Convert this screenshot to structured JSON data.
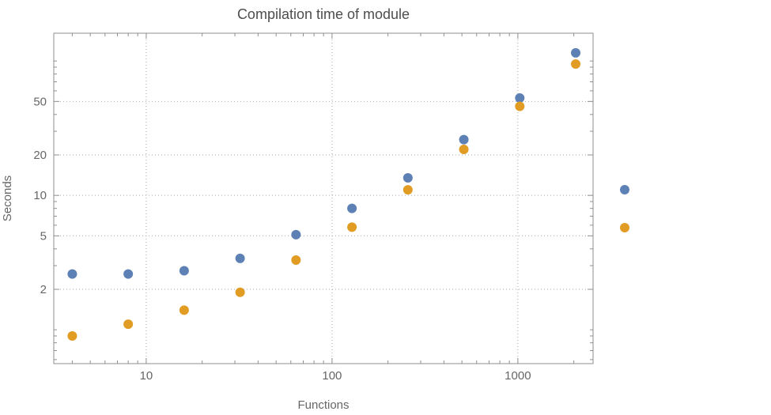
{
  "chart_data": {
    "type": "scatter",
    "title": "Compilation time of module",
    "xlabel": "Functions",
    "ylabel": "Seconds",
    "xscale": "log",
    "yscale": "log",
    "grid": true,
    "grid_style": "dotted",
    "xlim": [
      3.18,
      2540
    ],
    "ylim": [
      0.56,
      161
    ],
    "x_ticks": [
      10,
      100,
      1000
    ],
    "y_ticks": [
      2,
      5,
      10,
      20,
      50
    ],
    "x": [
      4,
      8,
      16,
      32,
      64,
      128,
      256,
      512,
      1024,
      2048
    ],
    "series": [
      {
        "name": "blue-series",
        "color": "#5E81B5",
        "values": [
          2.6,
          2.6,
          2.75,
          3.4,
          5.1,
          8.0,
          13.5,
          26,
          53,
          115
        ]
      },
      {
        "name": "orange-series",
        "color": "#E19C24",
        "values": [
          0.9,
          1.1,
          1.4,
          1.9,
          3.3,
          5.8,
          11,
          22,
          46,
          95
        ]
      }
    ],
    "legend": {
      "position": "right-outside",
      "labels_visible": false,
      "entries": [
        {
          "series": "blue-series",
          "marker": "disk"
        },
        {
          "series": "orange-series",
          "marker": "disk"
        }
      ]
    },
    "frame": true,
    "colors": {
      "frame": "#8f8f8f",
      "gridline": "#ababab",
      "title_text": "#4d4d4d",
      "label_text": "#666666"
    }
  }
}
